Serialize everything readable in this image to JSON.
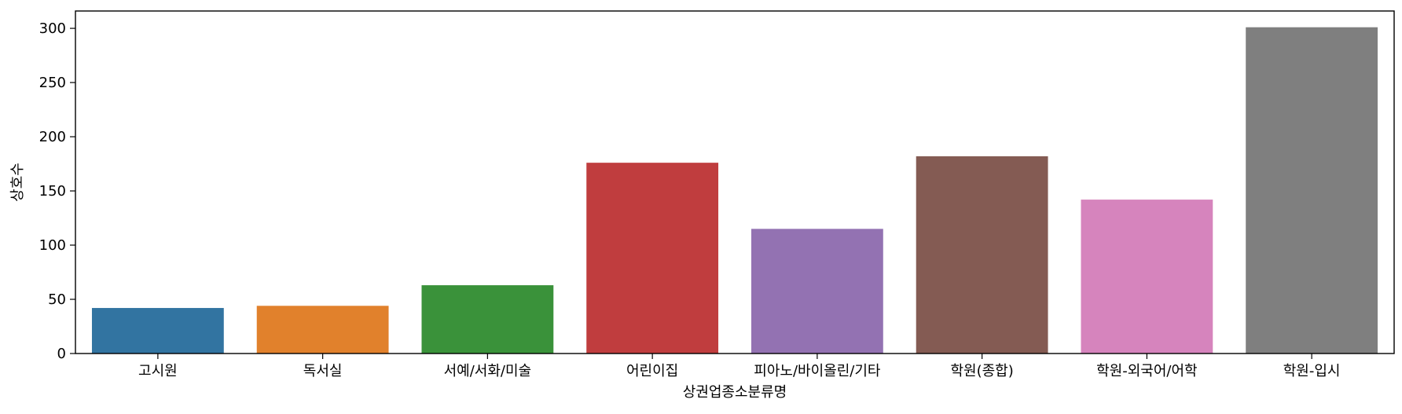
{
  "chart_data": {
    "type": "bar",
    "xlabel": "상권업종소분류명",
    "ylabel": "상호수",
    "categories": [
      "고시원",
      "독서실",
      "서예/서화/미술",
      "어린이집",
      "피아노/바이올린/기타",
      "학원(종합)",
      "학원-외국어/어학",
      "학원-입시"
    ],
    "values": [
      42,
      44,
      63,
      176,
      115,
      182,
      142,
      301
    ],
    "colors": [
      "#3274a1",
      "#e1812c",
      "#3a923a",
      "#c03d3e",
      "#9372b2",
      "#845b53",
      "#d684bd",
      "#7f7f7f"
    ],
    "ylim": [
      0,
      316
    ],
    "yticks": [
      0,
      50,
      100,
      150,
      200,
      250,
      300
    ],
    "grid": false,
    "legend": false
  }
}
